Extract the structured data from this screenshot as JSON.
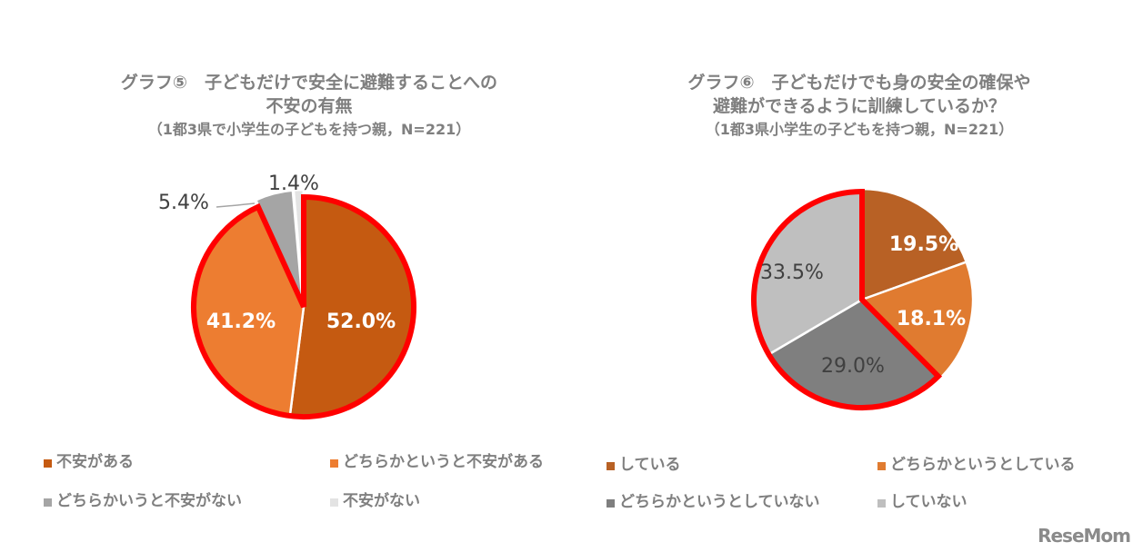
{
  "chart_data": [
    {
      "type": "pie",
      "title": "グラフ⑤　子どもだけで安全に避難することへの不安の有無",
      "subtitle": "（1都3県で小学生の子どもを持つ親，N=221）",
      "categories": [
        "不安がある",
        "どちらかというと不安がある",
        "どちらかいうと不安がない",
        "不安がない"
      ],
      "values": [
        52.0,
        41.2,
        5.4,
        1.4
      ],
      "labels": [
        "52.0%",
        "41.2%",
        "5.4%",
        "1.4%"
      ],
      "colors": [
        "#c55a11",
        "#ed7d31",
        "#a5a5a5",
        "#e3e3e3"
      ],
      "start_angle": "12 o'clock, clockwise",
      "highlight": {
        "slices": [
          0,
          1
        ],
        "outline_color": "#ff0000"
      },
      "legend_position": "bottom"
    },
    {
      "type": "pie",
      "title": "グラフ⑥　子どもだけでも身の安全の確保や避難ができるように訓練しているか？",
      "subtitle": "（1都3県小学生の子どもを持つ親，N=221）",
      "categories": [
        "している",
        "どちらかというとしている",
        "どちらかというとしていない",
        "していない"
      ],
      "values": [
        19.5,
        18.1,
        29.0,
        33.5
      ],
      "labels": [
        "19.5%",
        "18.1%",
        "29.0%",
        "33.5%"
      ],
      "colors": [
        "#b86125",
        "#e07b30",
        "#7f7f7f",
        "#bfbfbf"
      ],
      "start_angle": "12 o'clock, clockwise",
      "highlight": {
        "slices": [
          2,
          3
        ],
        "outline_color": "#ff0000"
      },
      "legend_position": "bottom"
    }
  ],
  "chart1": {
    "title_line1": "グラフ⑤　子どもだけで安全に避難することへの",
    "title_line2": "不安の有無",
    "subtitle": "（1都3県で小学生の子どもを持つ親，N=221）",
    "labels": [
      "52.0%",
      "41.2%",
      "5.4%",
      "1.4%"
    ],
    "legend": [
      {
        "label": "不安がある",
        "color": "#c55a11"
      },
      {
        "label": "どちらかというと不安がある",
        "color": "#ed7d31"
      },
      {
        "label": "どちらかいうと不安がない",
        "color": "#a5a5a5"
      },
      {
        "label": "不安がない",
        "color": "#e3e3e3"
      }
    ]
  },
  "chart2": {
    "title_line1": "グラフ⑥　子どもだけでも身の安全の確保や",
    "title_line2": "避難ができるように訓練しているか？",
    "subtitle": "（1都3県小学生の子どもを持つ親，N=221）",
    "labels": [
      "19.5%",
      "18.1%",
      "29.0%",
      "33.5%"
    ],
    "legend": [
      {
        "label": "している",
        "color": "#b86125"
      },
      {
        "label": "どちらかというとしている",
        "color": "#e07b30"
      },
      {
        "label": "どちらかというとしていない",
        "color": "#7f7f7f"
      },
      {
        "label": "していない",
        "color": "#bfbfbf"
      }
    ]
  },
  "branding": {
    "logo": "ReseMom"
  }
}
